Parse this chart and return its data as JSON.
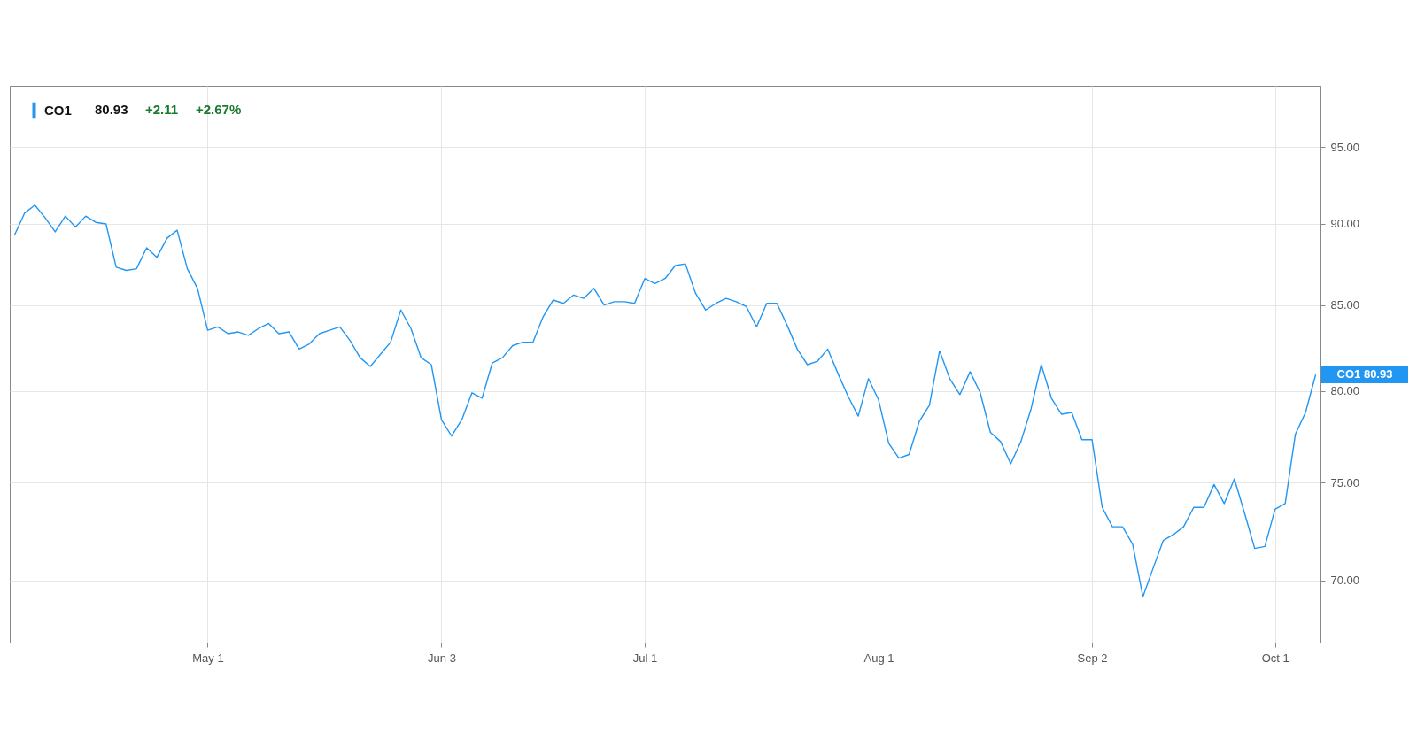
{
  "chart_data": {
    "type": "line",
    "categories": [
      null,
      null,
      null,
      null,
      null,
      null,
      null,
      null,
      null,
      null,
      null,
      null,
      null,
      null,
      null,
      null,
      null,
      null,
      null,
      "May 1",
      null,
      null,
      null,
      null,
      null,
      null,
      null,
      null,
      null,
      null,
      null,
      null,
      null,
      null,
      null,
      null,
      null,
      null,
      null,
      null,
      null,
      null,
      "Jun 3",
      null,
      null,
      null,
      null,
      null,
      null,
      null,
      null,
      null,
      null,
      null,
      null,
      null,
      null,
      null,
      null,
      null,
      null,
      null,
      "Jul 1",
      null,
      null,
      null,
      null,
      null,
      null,
      null,
      null,
      null,
      null,
      null,
      null,
      null,
      null,
      null,
      null,
      null,
      null,
      null,
      null,
      null,
      null,
      "Aug 1",
      null,
      null,
      null,
      null,
      null,
      null,
      null,
      null,
      null,
      null,
      null,
      null,
      null,
      null,
      null,
      null,
      null,
      null,
      null,
      null,
      "Sep 2",
      null,
      null,
      null,
      null,
      null,
      null,
      null,
      null,
      null,
      null,
      null,
      null,
      null,
      null,
      null,
      null,
      null,
      "Oct 1",
      null,
      null,
      null,
      null
    ],
    "series": [
      {
        "name": "CO1",
        "color": "#2196f3",
        "values": [
          89.3,
          90.7,
          91.2,
          90.4,
          89.5,
          90.5,
          89.8,
          90.5,
          90.1,
          90.0,
          87.3,
          87.1,
          87.2,
          88.5,
          87.9,
          89.1,
          89.6,
          87.2,
          86.0,
          83.5,
          83.7,
          83.3,
          83.4,
          83.2,
          83.6,
          83.9,
          83.3,
          83.4,
          82.4,
          82.7,
          83.3,
          83.5,
          83.7,
          82.9,
          81.9,
          81.4,
          82.1,
          82.8,
          84.7,
          83.6,
          81.9,
          81.5,
          78.4,
          77.5,
          78.4,
          79.9,
          79.6,
          81.6,
          81.9,
          82.6,
          82.8,
          82.8,
          84.3,
          85.3,
          85.1,
          85.6,
          85.4,
          86.0,
          85.0,
          85.2,
          85.2,
          85.1,
          86.6,
          86.3,
          86.6,
          87.4,
          87.5,
          85.7,
          84.7,
          85.1,
          85.4,
          85.2,
          84.9,
          83.7,
          85.1,
          85.1,
          83.8,
          82.4,
          81.5,
          81.7,
          82.4,
          81.0,
          79.7,
          78.6,
          80.7,
          79.5,
          77.1,
          76.3,
          76.5,
          78.3,
          79.2,
          82.3,
          80.7,
          79.8,
          81.1,
          79.9,
          77.7,
          77.2,
          76.0,
          77.2,
          79.0,
          81.5,
          79.6,
          78.7,
          78.8,
          77.3,
          77.3,
          73.7,
          72.7,
          72.7,
          71.8,
          69.2,
          70.6,
          72.0,
          72.3,
          72.7,
          73.7,
          73.7,
          74.9,
          73.9,
          75.2,
          73.4,
          71.6,
          71.7,
          73.6,
          73.9,
          77.6,
          78.8,
          80.93
        ]
      }
    ],
    "ylim": [
      67.0,
      99.2
    ],
    "yticks": [
      {
        "value": 70,
        "label": "70.00"
      },
      {
        "value": 75,
        "label": "75.00"
      },
      {
        "value": 80,
        "label": "80.00"
      },
      {
        "value": 85,
        "label": "85.00"
      },
      {
        "value": 90,
        "label": "90.00"
      },
      {
        "value": 95,
        "label": "95.00"
      }
    ],
    "log": "y",
    "grid": true,
    "legend": "top left",
    "annotations": [
      "80.93",
      "+2.11",
      "+2.67%",
      "CO1 80.93"
    ]
  }
}
